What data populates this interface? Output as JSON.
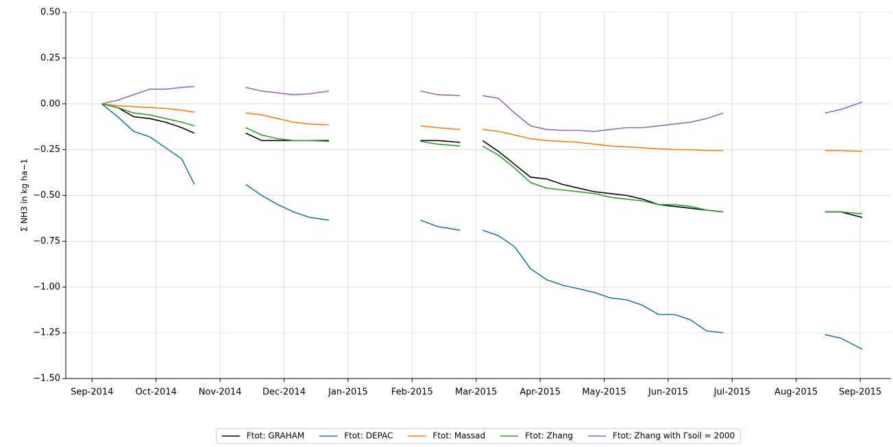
{
  "chart_data": {
    "type": "line",
    "ylabel": "Σ NH3 in kg ha−1",
    "x": [
      0.15,
      0.4,
      0.65,
      0.9,
      1.15,
      1.4,
      1.6,
      2.0,
      2.4,
      2.65,
      2.9,
      3.15,
      3.4,
      3.7,
      4.5,
      5.13,
      5.4,
      5.75,
      5.9,
      6.1,
      6.35,
      6.6,
      6.85,
      7.1,
      7.35,
      7.6,
      7.85,
      8.1,
      8.35,
      8.6,
      8.85,
      9.1,
      9.35,
      9.6,
      9.86,
      10.6,
      11.45,
      11.7,
      12.03
    ],
    "series": [
      {
        "name": "Ftot: GRAHAM",
        "color": "#000000",
        "values": [
          0,
          -0.02,
          -0.07,
          -0.08,
          -0.1,
          -0.13,
          -0.16,
          null,
          -0.16,
          -0.2,
          -0.2,
          -0.2,
          -0.2,
          -0.2,
          null,
          -0.2,
          -0.2,
          -0.21,
          null,
          -0.2,
          -0.26,
          -0.33,
          -0.4,
          -0.41,
          -0.44,
          -0.46,
          -0.48,
          -0.49,
          -0.5,
          -0.52,
          -0.55,
          -0.56,
          -0.57,
          -0.58,
          -0.59,
          null,
          -0.59,
          -0.59,
          -0.62
        ]
      },
      {
        "name": "Ftot: DEPAC",
        "color": "#1f77b4",
        "values": [
          0,
          -0.07,
          -0.15,
          -0.18,
          -0.24,
          -0.3,
          -0.44,
          null,
          -0.44,
          -0.5,
          -0.55,
          -0.59,
          -0.62,
          -0.635,
          null,
          -0.635,
          -0.67,
          -0.69,
          null,
          -0.69,
          -0.72,
          -0.78,
          -0.9,
          -0.96,
          -0.99,
          -1.01,
          -1.03,
          -1.06,
          -1.07,
          -1.1,
          -1.15,
          -1.15,
          -1.18,
          -1.24,
          -1.25,
          null,
          -1.26,
          -1.28,
          -1.34
        ]
      },
      {
        "name": "Ftot: Massad",
        "color": "#ff7f0e",
        "values": [
          0,
          -0.01,
          -0.015,
          -0.02,
          -0.025,
          -0.035,
          -0.045,
          null,
          -0.05,
          -0.06,
          -0.08,
          -0.1,
          -0.11,
          -0.115,
          null,
          -0.12,
          -0.13,
          -0.14,
          null,
          -0.14,
          -0.15,
          -0.17,
          -0.19,
          -0.2,
          -0.205,
          -0.21,
          -0.22,
          -0.23,
          -0.235,
          -0.24,
          -0.245,
          -0.25,
          -0.25,
          -0.255,
          -0.255,
          null,
          -0.255,
          -0.255,
          -0.26
        ]
      },
      {
        "name": "Ftot: Zhang",
        "color": "#2ca02c",
        "values": [
          0,
          -0.02,
          -0.05,
          -0.06,
          -0.08,
          -0.1,
          -0.12,
          null,
          -0.13,
          -0.17,
          -0.19,
          -0.2,
          -0.2,
          -0.205,
          null,
          -0.205,
          -0.22,
          -0.23,
          null,
          -0.23,
          -0.28,
          -0.35,
          -0.43,
          -0.46,
          -0.47,
          -0.48,
          -0.49,
          -0.51,
          -0.52,
          -0.53,
          -0.55,
          -0.55,
          -0.56,
          -0.58,
          -0.59,
          null,
          -0.59,
          -0.59,
          -0.6
        ]
      },
      {
        "name": "Ftot: Zhang with Γsoil = 2000",
        "color": "#9467bd",
        "values": [
          0,
          0.02,
          0.05,
          0.08,
          0.08,
          0.09,
          0.095,
          null,
          0.09,
          0.07,
          0.06,
          0.05,
          0.055,
          0.07,
          null,
          0.07,
          0.05,
          0.045,
          null,
          0.045,
          0.03,
          -0.05,
          -0.12,
          -0.14,
          -0.145,
          -0.145,
          -0.15,
          -0.14,
          -0.13,
          -0.13,
          -0.12,
          -0.11,
          -0.1,
          -0.08,
          -0.05,
          null,
          -0.05,
          -0.03,
          0.01
        ]
      }
    ],
    "xlim": [
      -0.41,
      12.48
    ],
    "xticks": [
      {
        "value": 0,
        "label": "Sep-2014"
      },
      {
        "value": 1,
        "label": "Oct-2014"
      },
      {
        "value": 2,
        "label": "Nov-2014"
      },
      {
        "value": 3,
        "label": "Dec-2014"
      },
      {
        "value": 4,
        "label": "Jan-2015"
      },
      {
        "value": 5,
        "label": "Feb-2015"
      },
      {
        "value": 6,
        "label": "Mar-2015"
      },
      {
        "value": 7,
        "label": "Apr-2015"
      },
      {
        "value": 8,
        "label": "May-2015"
      },
      {
        "value": 9,
        "label": "Jun-2015"
      },
      {
        "value": 10,
        "label": "Jul-2015"
      },
      {
        "value": 11,
        "label": "Aug-2015"
      },
      {
        "value": 12,
        "label": "Sep-2015"
      }
    ],
    "ylim": [
      -1.5,
      0.5
    ],
    "yticks": [
      {
        "value": -1.5,
        "label": "−1.50"
      },
      {
        "value": -1.25,
        "label": "−1.25"
      },
      {
        "value": -1,
        "label": "−1.00"
      },
      {
        "value": -0.75,
        "label": "−0.75"
      },
      {
        "value": -0.5,
        "label": "−0.50"
      },
      {
        "value": -0.25,
        "label": "−0.25"
      },
      {
        "value": 0,
        "label": "0.00"
      },
      {
        "value": 0.25,
        "label": "0.25"
      },
      {
        "value": 0.5,
        "label": "0.50"
      }
    ],
    "grid": true,
    "legend": "bottom"
  }
}
